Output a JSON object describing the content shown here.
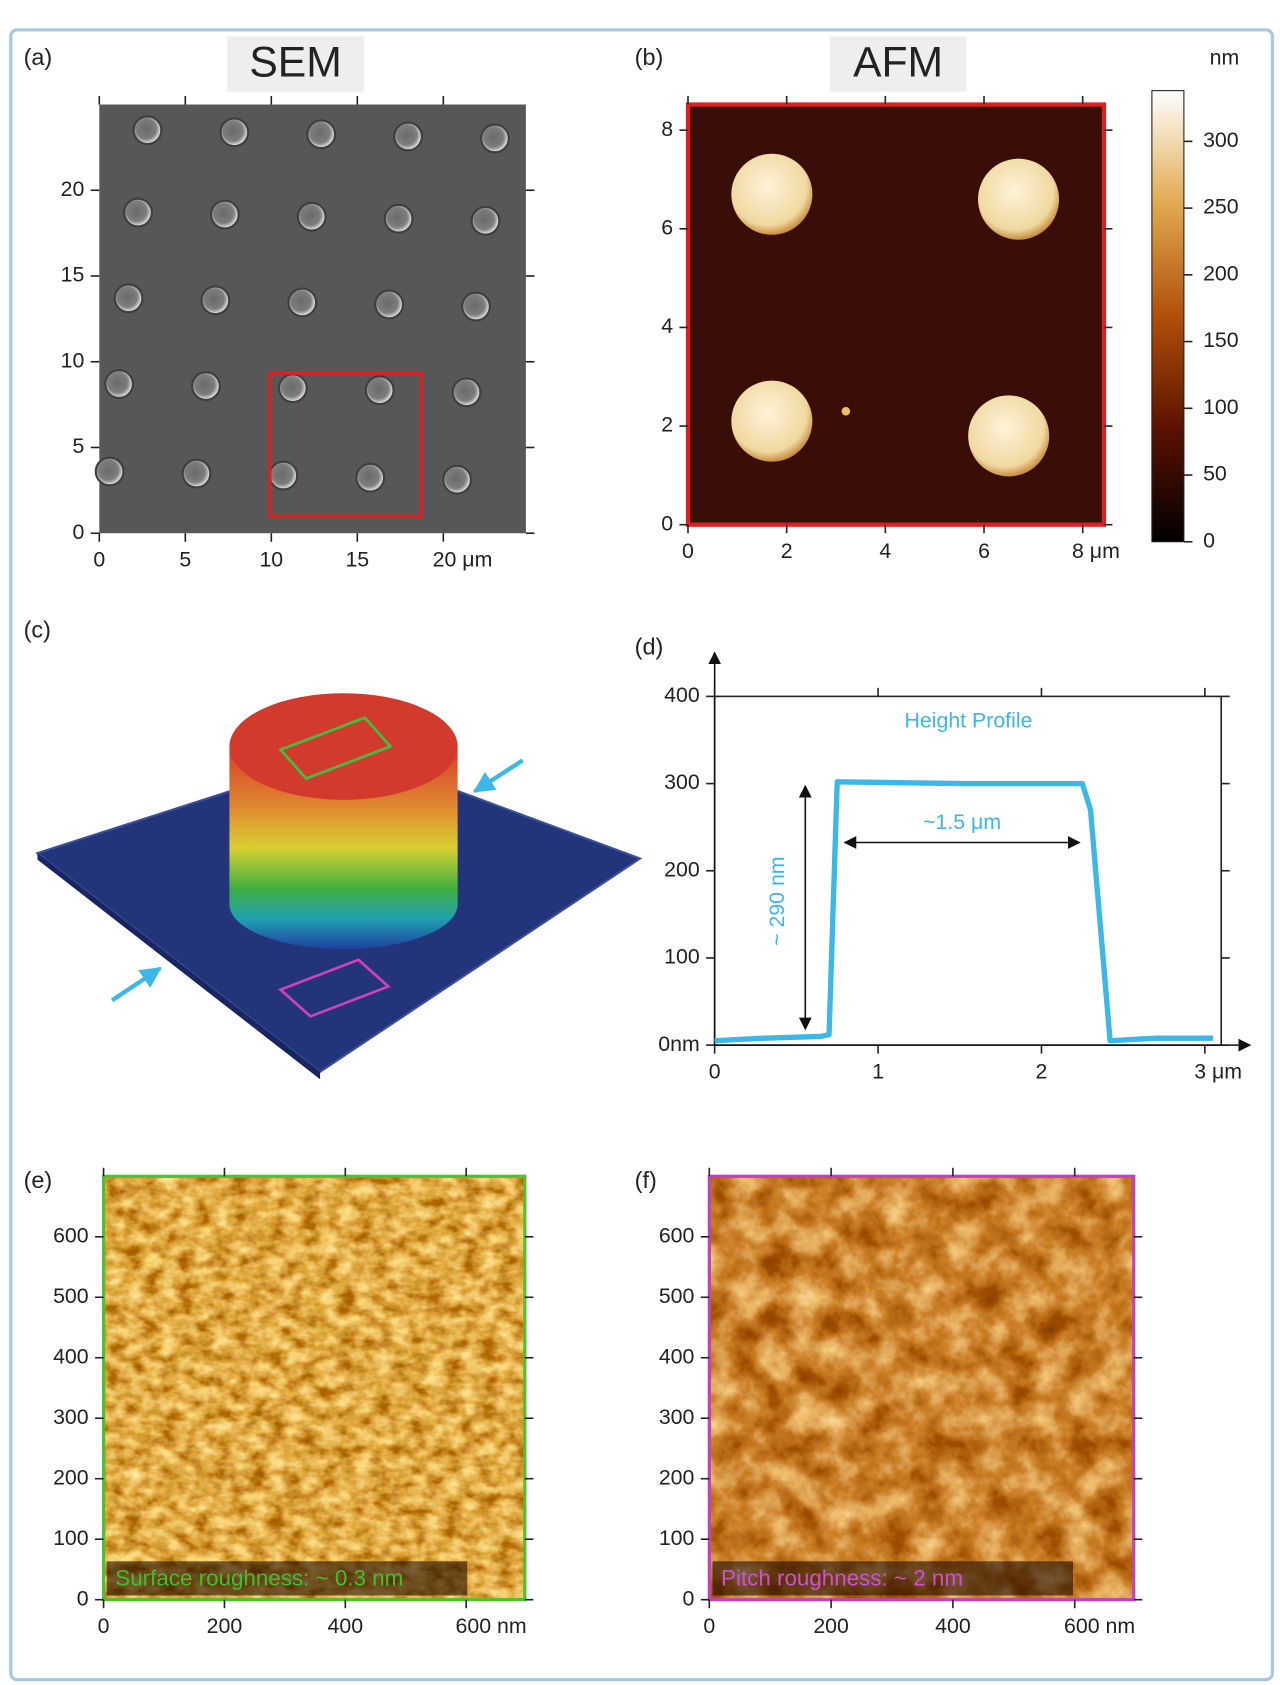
{
  "panels": [
    {
      "label": "(a)",
      "title": "SEM",
      "xlim": [
        0,
        24.8
      ],
      "ylim": [
        0,
        25
      ],
      "xticks": [
        0,
        5,
        10,
        15,
        {
          "value": 20,
          "label": "20 μm"
        }
      ],
      "yticks": [
        0,
        5,
        10,
        15,
        20
      ]
    },
    {
      "label": "(b)",
      "title": "AFM",
      "xlim": [
        0,
        8.43
      ],
      "ylim": [
        0,
        8.52
      ],
      "xticks": [
        0,
        2,
        4,
        6,
        {
          "value": 8,
          "label": "8 μm"
        }
      ],
      "yticks": [
        0,
        2,
        4,
        6,
        8
      ],
      "colorbar": {
        "unit": "nm",
        "lim": [
          0,
          338
        ],
        "ticks": [
          0,
          50,
          100,
          150,
          200,
          250,
          300
        ]
      }
    },
    {
      "label": "(c)"
    },
    {
      "label": "(d)",
      "type": "line",
      "title": "Height Profile",
      "color": "#3bb7e8",
      "x": [
        0,
        0.3,
        0.65,
        0.7,
        0.75,
        1.5,
        2.25,
        2.3,
        2.42,
        2.7,
        3.05
      ],
      "values": [
        5,
        8,
        10,
        12,
        302,
        300,
        300,
        270,
        5,
        8,
        8
      ],
      "xlim": [
        0,
        3.1
      ],
      "ylim": [
        0,
        400
      ],
      "xticks": [
        0,
        1,
        2,
        {
          "value": 3,
          "label": "3 μm"
        }
      ],
      "yticks": [
        {
          "value": 0,
          "label": "0nm"
        },
        100,
        200,
        300,
        400
      ],
      "annotations": [
        "~1.5 μm",
        "~ 290 nm"
      ]
    },
    {
      "label": "(e)",
      "xlim": [
        0,
        697
      ],
      "ylim": [
        0,
        700
      ],
      "xticks": [
        0,
        200,
        400,
        {
          "value": 600,
          "label": "600 nm"
        }
      ],
      "yticks": [
        0,
        100,
        200,
        300,
        400,
        500,
        600
      ],
      "annotation": "Surface roughness: ~ 0.3 nm"
    },
    {
      "label": "(f)",
      "xlim": [
        0,
        697
      ],
      "ylim": [
        0,
        700
      ],
      "xticks": [
        0,
        200,
        400,
        {
          "value": 600,
          "label": "600 nm"
        }
      ],
      "yticks": [
        0,
        100,
        200,
        300,
        400,
        500,
        600
      ],
      "annotation": "Pitch roughness: ~ 2 nm"
    }
  ]
}
